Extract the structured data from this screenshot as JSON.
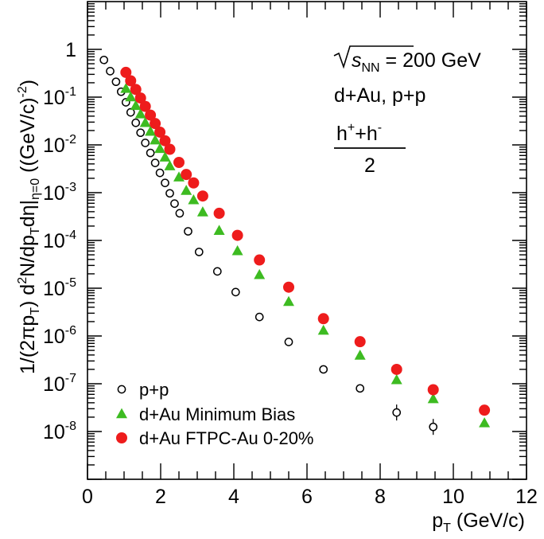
{
  "chart_data": {
    "type": "scatter",
    "yscale": "log",
    "xlim": [
      0,
      12
    ],
    "ylim_log10": [
      -9,
      1
    ],
    "x_ticks": [
      0,
      2,
      4,
      6,
      8,
      10,
      12
    ],
    "x_tick_labels": [
      "0",
      "2",
      "4",
      "6",
      "8",
      "10",
      "12"
    ],
    "y_ticks_log10": [
      0,
      -1,
      -2,
      -3,
      -4,
      -5,
      -6,
      -7,
      -8
    ],
    "y_tick_labels": [
      {
        "base": "1",
        "exp": ""
      },
      {
        "base": "10",
        "exp": "-1"
      },
      {
        "base": "10",
        "exp": "-2"
      },
      {
        "base": "10",
        "exp": "-3"
      },
      {
        "base": "10",
        "exp": "-4"
      },
      {
        "base": "10",
        "exp": "-5"
      },
      {
        "base": "10",
        "exp": "-6"
      },
      {
        "base": "10",
        "exp": "-7"
      },
      {
        "base": "10",
        "exp": "-8"
      }
    ],
    "xlabel": {
      "main": "p",
      "sub": "T",
      "rest": " (GeV/c)"
    },
    "ylabel": {
      "a": "1/(2πp",
      "a_sub": "T",
      "b": ") d",
      "b_sup": "2",
      "c": "N/dp",
      "c_sub": "T",
      "d": "dη|",
      "d_sub": "η=0",
      "e": " ((GeV/c)",
      "e_sup": "-2",
      "f": ")"
    },
    "annotation": {
      "sqrt_s": "s",
      "sqrt_s_sub": "NN",
      "energy": " = 200 GeV",
      "system": "d+Au, p+p",
      "ratio_num_a": "h",
      "ratio_num_a_sup": "+",
      "ratio_num_plus": "+h",
      "ratio_num_b_sup": "-",
      "ratio_den": "2"
    },
    "legend_position": "bottom-left",
    "series": [
      {
        "name": "p+p",
        "marker": "open-circle",
        "color": "#000000",
        "x": [
          0.45,
          0.62,
          0.78,
          0.92,
          1.05,
          1.18,
          1.32,
          1.45,
          1.58,
          1.72,
          1.85,
          1.98,
          2.12,
          2.25,
          2.38,
          2.52,
          2.75,
          3.05,
          3.55,
          4.05,
          4.7,
          5.5,
          6.45,
          7.45,
          8.45,
          9.45
        ],
        "y": [
          0.6,
          0.35,
          0.21,
          0.13,
          0.078,
          0.048,
          0.029,
          0.018,
          0.011,
          0.0068,
          0.0042,
          0.0026,
          0.0016,
          0.00097,
          0.00059,
          0.00037,
          0.000155,
          5.75e-05,
          2.25e-05,
          8.3e-06,
          2.5e-06,
          7.5e-07,
          2e-07,
          8e-08,
          2.5e-08,
          1.25e-08
        ]
      },
      {
        "name": "d+Au Minimum Bias",
        "marker": "filled-triangle",
        "color": "#3dbb21",
        "x": [
          1.05,
          1.18,
          1.32,
          1.45,
          1.58,
          1.72,
          1.85,
          1.98,
          2.12,
          2.25,
          2.5,
          2.7,
          2.9,
          3.15,
          3.6,
          4.1,
          4.7,
          5.5,
          6.45,
          7.45,
          8.45,
          9.45,
          10.85
        ],
        "y": [
          0.15,
          0.1,
          0.066,
          0.044,
          0.029,
          0.019,
          0.0125,
          0.0083,
          0.0055,
          0.0036,
          0.0021,
          0.0011,
          0.0007,
          0.00039,
          0.00016,
          6e-05,
          1.9e-05,
          5.2e-06,
          1.3e-06,
          3.9e-07,
          1.2e-07,
          4.8e-08,
          1.5e-08
        ]
      },
      {
        "name": "d+Au FTPC-Au 0-20%",
        "marker": "filled-circle",
        "color": "#ee1c1c",
        "x": [
          1.05,
          1.18,
          1.32,
          1.45,
          1.58,
          1.72,
          1.85,
          1.98,
          2.12,
          2.25,
          2.5,
          2.7,
          2.9,
          3.15,
          3.6,
          4.1,
          4.7,
          5.5,
          6.45,
          7.45,
          8.45,
          9.45,
          10.85
        ],
        "y": [
          0.33,
          0.22,
          0.145,
          0.096,
          0.064,
          0.042,
          0.028,
          0.0185,
          0.0122,
          0.0081,
          0.0043,
          0.0024,
          0.0016,
          0.00085,
          0.00037,
          0.000128,
          3.9e-05,
          1.05e-05,
          2.3e-06,
          7.6e-07,
          2e-07,
          7.5e-08,
          2.8e-08
        ]
      }
    ]
  }
}
